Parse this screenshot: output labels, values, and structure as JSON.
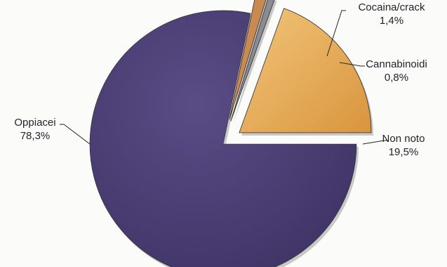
{
  "chart_data": {
    "type": "pie",
    "title": "",
    "unit": "%",
    "slices": [
      {
        "name": "Non noto",
        "value": 19.5,
        "label": "19,5%",
        "color": "#e6a84e",
        "exploded": true
      },
      {
        "name": "Cannabinoidi",
        "value": 0.8,
        "label": "0,8%",
        "color": "#8b8b93",
        "exploded": true
      },
      {
        "name": "Cocaina/crack",
        "value": 1.4,
        "label": "1,4%",
        "color": "#c98a52",
        "exploded": true
      },
      {
        "name": "Oppiacei",
        "value": 78.3,
        "label": "78,3%",
        "color": "#4f4178",
        "exploded": false
      }
    ]
  }
}
